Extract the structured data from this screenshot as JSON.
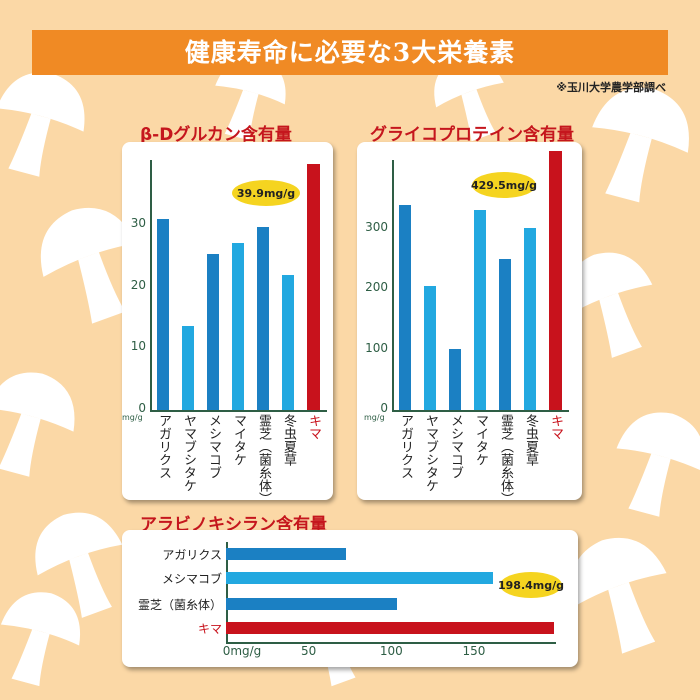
{
  "header": {
    "title": "健康寿命に必要な3大栄養素",
    "note": "※玉川大学農学部調べ"
  },
  "colors": {
    "dark_bar": "#1b80c3",
    "light_bar": "#22a8e0",
    "highlight": "#c8121c",
    "bubble": "#f5d420"
  },
  "chart_data": [
    {
      "type": "bar",
      "title": "β-Dグルカン含有量",
      "unit": "mg/g",
      "ylim": [
        0,
        40
      ],
      "yticks": [
        0,
        10,
        20,
        30
      ],
      "categories": [
        "アガリクス",
        "ヤマブシタケ",
        "メシマコブ",
        "マイタケ",
        "霊芝（菌糸体）",
        "冬虫夏草",
        "キマ"
      ],
      "values": [
        31,
        13.6,
        25.3,
        27.1,
        29.7,
        21.9,
        39.9
      ],
      "highlight": "キマ",
      "callout": "39.9mg/g"
    },
    {
      "type": "bar",
      "title": "グライコプロテイン含有量",
      "unit": "mg/g",
      "ylim": [
        0,
        430
      ],
      "yticks": [
        0,
        100,
        200,
        300
      ],
      "categories": [
        "アガリクス",
        "ヤマブシタケ",
        "メシマコブ",
        "マイタケ",
        "霊芝（菌糸体）",
        "冬虫夏草",
        "キマ"
      ],
      "values": [
        340,
        206,
        101,
        332,
        250,
        302,
        429.5
      ],
      "highlight": "キマ",
      "callout": "429.5mg/g"
    },
    {
      "type": "bar",
      "orientation": "horizontal",
      "title": "アラビノキシラン含有量",
      "unit": "mg/g",
      "xlim": [
        0,
        200
      ],
      "xticks": [
        "0mg/g",
        "50",
        "100",
        "150"
      ],
      "categories": [
        "アガリクス",
        "メシマコブ",
        "霊芝（菌糸体）",
        "キマ"
      ],
      "values": [
        72.6,
        161.5,
        103.4,
        198.4
      ],
      "highlight": "キマ",
      "callout": "198.4mg/g"
    }
  ]
}
